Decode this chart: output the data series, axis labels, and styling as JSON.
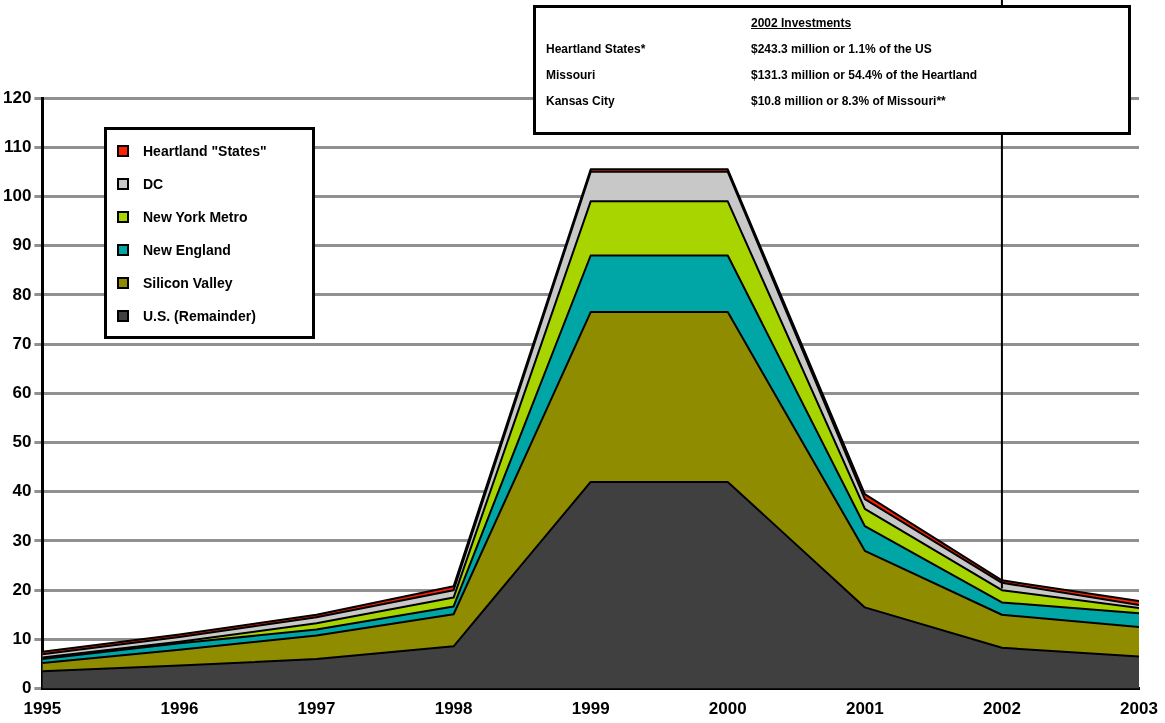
{
  "chart_data": {
    "type": "area",
    "stacked": true,
    "x": [
      1995,
      1996,
      1997,
      1998,
      1999,
      2000,
      2001,
      2002,
      2003
    ],
    "series": [
      {
        "name": "U.S. (Remainder)",
        "color": "#404040",
        "values": [
          3.5,
          4.7,
          6.0,
          8.6,
          42,
          42,
          16.5,
          8.3,
          6.5
        ]
      },
      {
        "name": "Silicon Valley",
        "color": "#8f8c00",
        "values": [
          1.7,
          3.2,
          4.8,
          6.5,
          34.5,
          34.5,
          11.5,
          6.7,
          6
        ]
      },
      {
        "name": "New England",
        "color": "#00a6a6",
        "values": [
          0.8,
          1.3,
          1.2,
          1.6,
          11.5,
          11.5,
          5,
          2.5,
          2.8
        ]
      },
      {
        "name": "New York Metro",
        "color": "#a8d400",
        "values": [
          0.3,
          0.3,
          1.3,
          1.8,
          11,
          11,
          3.5,
          2.5,
          1.1
        ]
      },
      {
        "name": "DC",
        "color": "#c8c8c8",
        "values": [
          0.7,
          1.0,
          1.2,
          1.5,
          6,
          6,
          2,
          1.5,
          0.6
        ]
      },
      {
        "name": "Heartland \"States\"",
        "color": "#ff2000",
        "values": [
          0.5,
          0.5,
          0.5,
          0.8,
          0.5,
          0.5,
          1,
          0.5,
          0.8
        ]
      }
    ],
    "xlim": [
      1995,
      2003
    ],
    "xticks": [
      1995,
      1996,
      1997,
      1998,
      1999,
      2000,
      2001,
      2002,
      2003
    ],
    "ylim": [
      0,
      120
    ],
    "yticks": [
      0,
      10,
      20,
      30,
      40,
      50,
      60,
      70,
      80,
      90,
      100,
      110,
      120
    ],
    "grid": "y",
    "legend": "top left",
    "ref_lines": [
      {
        "axis": "x",
        "value": 2002,
        "color": "#000000"
      }
    ],
    "annotations": [
      "2002 Investments",
      "Heartland States*",
      "$243.3 million or 1.1% of the US",
      "Missouri",
      "$131.3 million or 54.4% of the Heartland",
      "Kansas City",
      "$10.8 million or 8.3% of Missouri**"
    ]
  }
}
